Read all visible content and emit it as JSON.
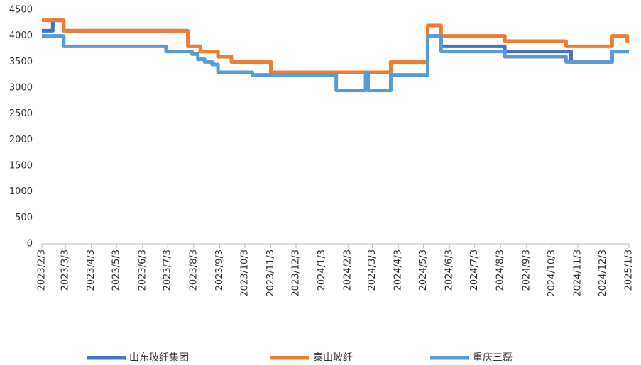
{
  "chart_data": {
    "type": "line",
    "step": true,
    "x": [
      "2023/2/3",
      "2023/2/16",
      "2023/3/1",
      "2023/7/1",
      "2023/7/27",
      "2023/8/1",
      "2023/8/8",
      "2023/8/11",
      "2023/8/16",
      "2023/8/25",
      "2023/9/1",
      "2023/9/17",
      "2023/10/12",
      "2023/11/3",
      "2024/1/20",
      "2024/2/24",
      "2024/2/27",
      "2024/3/25",
      "2024/5/8",
      "2024/5/24",
      "2024/8/8",
      "2024/10/20",
      "2024/10/26",
      "2024/12/2",
      "2024/12/14",
      "2025/1/1",
      "2025/1/3"
    ],
    "series": [
      {
        "name": "山东玻纤集团",
        "color": "#4472c4",
        "values": [
          4100,
          4300,
          4100,
          4100,
          3800,
          3800,
          3800,
          3700,
          3700,
          3700,
          3600,
          3500,
          3500,
          3300,
          3300,
          3300,
          3300,
          3500,
          4000,
          3800,
          3700,
          3700,
          3500,
          3500,
          3700,
          3700,
          3700
        ]
      },
      {
        "name": "泰山玻纤",
        "color": "#ed7d31",
        "values": [
          4300,
          4300,
          4100,
          4100,
          3800,
          3800,
          3800,
          3700,
          3700,
          3700,
          3600,
          3500,
          3500,
          3300,
          3300,
          3300,
          3300,
          3500,
          4200,
          4000,
          3900,
          3800,
          3800,
          3800,
          4000,
          3900,
          3900
        ]
      },
      {
        "name": "重庆三磊",
        "color": "#5b9bd5",
        "values": [
          4000,
          4000,
          3800,
          3700,
          3700,
          3650,
          3550,
          3550,
          3500,
          3450,
          3300,
          3300,
          3250,
          3250,
          2950,
          3300,
          2950,
          3250,
          4000,
          3700,
          3600,
          3500,
          3500,
          3500,
          3700,
          3700,
          3700
        ]
      }
    ],
    "xlim": [
      "2023/2/3",
      "2025/1/3"
    ],
    "xticks": [
      "2023/2/3",
      "2023/3/3",
      "2023/4/3",
      "2023/5/3",
      "2023/6/3",
      "2023/7/3",
      "2023/8/3",
      "2023/9/3",
      "2023/10/3",
      "2023/11/3",
      "2023/12/3",
      "2024/1/3",
      "2024/2/3",
      "2024/3/3",
      "2024/4/3",
      "2024/5/3",
      "2024/6/3",
      "2024/7/3",
      "2024/8/3",
      "2024/9/3",
      "2024/10/3",
      "2024/11/3",
      "2024/12/3",
      "2025/1/3"
    ],
    "ylim": [
      0,
      4500
    ],
    "yticks": [
      0,
      500,
      1000,
      1500,
      2000,
      2500,
      3000,
      3500,
      4000,
      4500
    ],
    "grid": false,
    "legend": "bottom"
  }
}
